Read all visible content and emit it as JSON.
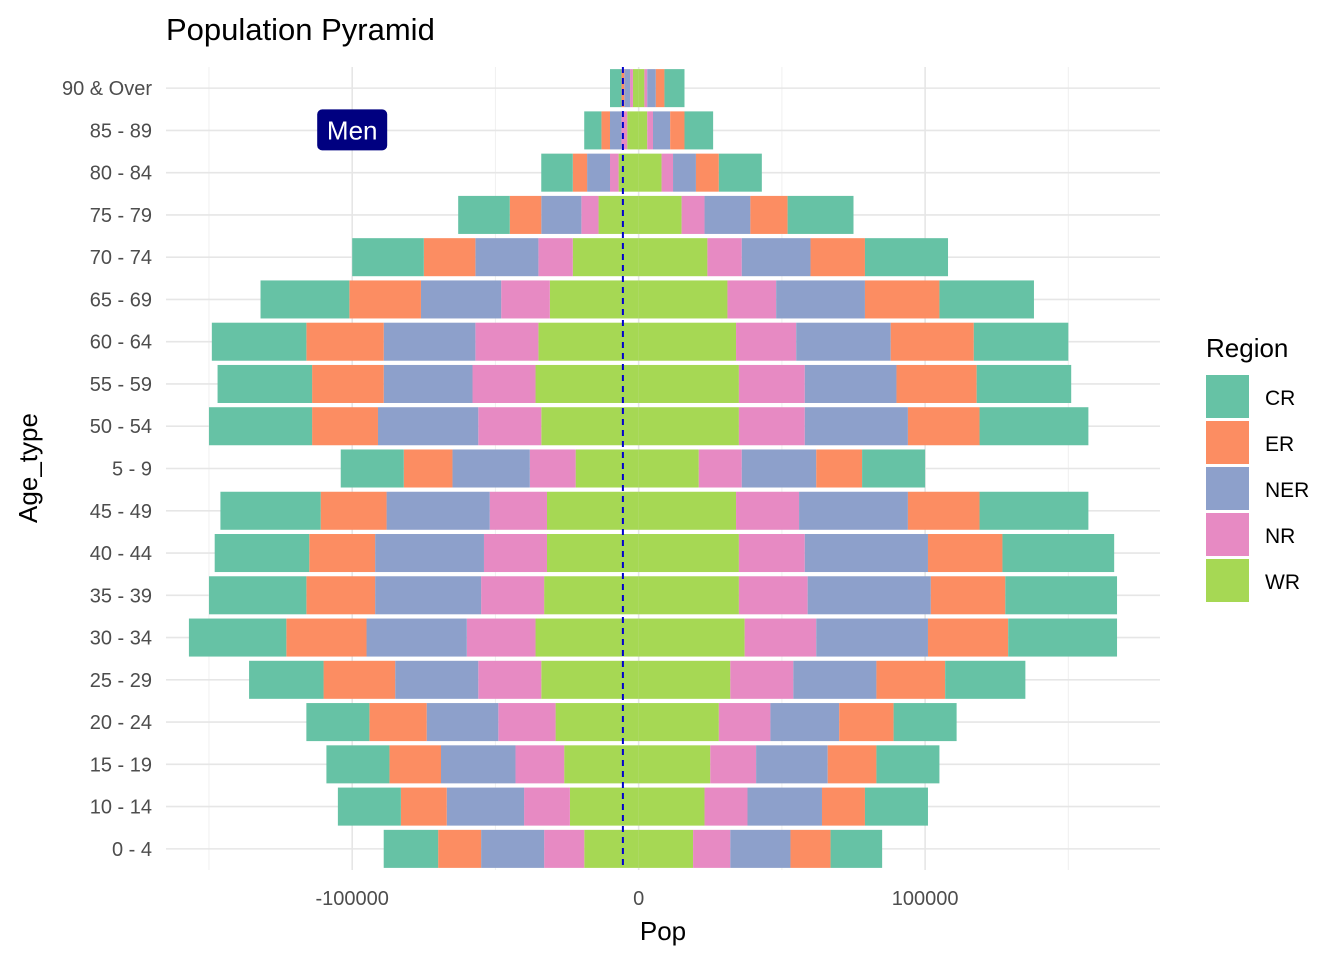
{
  "chart_data": {
    "type": "bar",
    "orientation": "horizontal",
    "stacked": true,
    "diverging": true,
    "title": "Population Pyramid",
    "xlabel": "Pop",
    "ylabel": "Age_type",
    "xlim": [
      -165000,
      182000
    ],
    "x_ticks": [
      -100000,
      0,
      100000
    ],
    "x_tick_labels": [
      "-100000",
      "0",
      "100000"
    ],
    "x_minor_ticks": [
      -150000,
      -50000,
      50000,
      150000
    ],
    "grid": true,
    "reference_line": {
      "x": -5500,
      "style": "dashed",
      "color": "#0000cd"
    },
    "annotation": {
      "label": "Men",
      "x": -100000,
      "category": "85 - 89",
      "bg_color": "#000080",
      "text_color": "#ffffff"
    },
    "legend": {
      "title": "Region",
      "position": "right"
    },
    "stack_order_outward": [
      "WR",
      "NR",
      "NER",
      "ER",
      "CR"
    ],
    "categories": [
      "0 - 4",
      "10 - 14",
      "15 - 19",
      "20 - 24",
      "25 - 29",
      "30 - 34",
      "35 - 39",
      "40 - 44",
      "45 - 49",
      "5 - 9",
      "50 - 54",
      "55 - 59",
      "60 - 64",
      "65 - 69",
      "70 - 74",
      "75 - 79",
      "80 - 84",
      "85 - 89",
      "90 & Over"
    ],
    "series": [
      {
        "name": "CR",
        "color": "#66c2a5",
        "values_negative": [
          -19000,
          -22000,
          -22000,
          -22000,
          -26000,
          -34000,
          -34000,
          -33000,
          -35000,
          -22000,
          -36000,
          -33000,
          -33000,
          -31000,
          -25000,
          -18000,
          -11000,
          -6000,
          -4000
        ],
        "values_positive": [
          18000,
          22000,
          22000,
          22000,
          28000,
          38000,
          39000,
          39000,
          38000,
          22000,
          38000,
          33000,
          33000,
          33000,
          29000,
          23000,
          15000,
          10000,
          7000
        ]
      },
      {
        "name": "ER",
        "color": "#fc8d62",
        "values_negative": [
          -15000,
          -16000,
          -18000,
          -20000,
          -25000,
          -28000,
          -24000,
          -23000,
          -23000,
          -17000,
          -23000,
          -25000,
          -27000,
          -25000,
          -18000,
          -11000,
          -5000,
          -3000,
          -1000
        ],
        "values_positive": [
          14000,
          15000,
          17000,
          19000,
          24000,
          28000,
          26000,
          26000,
          25000,
          16000,
          25000,
          28000,
          29000,
          26000,
          19000,
          13000,
          8000,
          5000,
          3000
        ]
      },
      {
        "name": "NER",
        "color": "#8da0cb",
        "values_negative": [
          -22000,
          -27000,
          -26000,
          -25000,
          -29000,
          -35000,
          -37000,
          -38000,
          -36000,
          -27000,
          -35000,
          -31000,
          -32000,
          -28000,
          -22000,
          -14000,
          -8000,
          -4000,
          -2000
        ],
        "values_positive": [
          21000,
          26000,
          25000,
          24000,
          29000,
          39000,
          43000,
          43000,
          38000,
          26000,
          36000,
          32000,
          33000,
          31000,
          24000,
          16000,
          8000,
          6000,
          3000
        ]
      },
      {
        "name": "NR",
        "color": "#e78ac3",
        "values_negative": [
          -14000,
          -16000,
          -17000,
          -20000,
          -22000,
          -24000,
          -22000,
          -22000,
          -20000,
          -16000,
          -22000,
          -22000,
          -22000,
          -17000,
          -12000,
          -6000,
          -3000,
          -2000,
          -1000
        ],
        "values_positive": [
          13000,
          15000,
          16000,
          18000,
          22000,
          25000,
          24000,
          23000,
          22000,
          15000,
          23000,
          23000,
          21000,
          17000,
          12000,
          8000,
          4000,
          2000,
          1000
        ]
      },
      {
        "name": "WR",
        "color": "#a6d854",
        "values_negative": [
          -19000,
          -24000,
          -26000,
          -29000,
          -34000,
          -36000,
          -33000,
          -32000,
          -32000,
          -22000,
          -34000,
          -36000,
          -35000,
          -31000,
          -23000,
          -14000,
          -7000,
          -4000,
          -2000
        ],
        "values_positive": [
          19000,
          23000,
          25000,
          28000,
          32000,
          37000,
          35000,
          35000,
          34000,
          21000,
          35000,
          35000,
          34000,
          31000,
          24000,
          15000,
          8000,
          3000,
          2000
        ]
      }
    ]
  }
}
